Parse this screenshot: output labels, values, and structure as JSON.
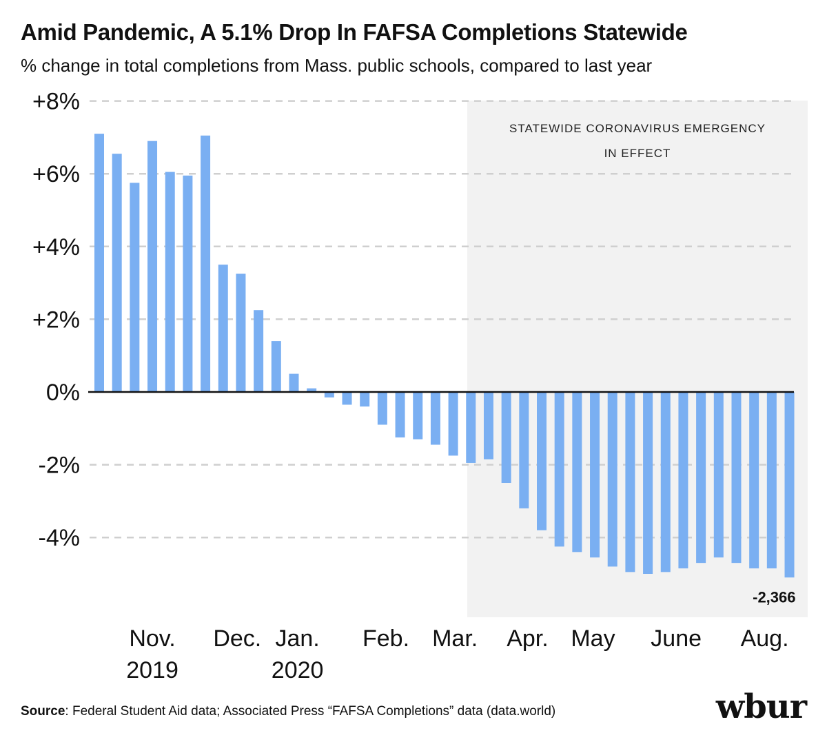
{
  "title": "Amid Pandemic, A 5.1% Drop In FAFSA Completions Statewide",
  "subtitle": "% change in total completions from Mass. public schools, compared to last year",
  "footer": {
    "source_label": "Source",
    "source_text": ": Federal Student Aid data; Associated Press “FAFSA Completions” data (data.world)"
  },
  "logo": "wbur",
  "chart_data": {
    "type": "bar",
    "ylabel": "",
    "xlabel": "",
    "ylim": [
      -6.2,
      8
    ],
    "yticks": [
      "+8%",
      "+6%",
      "+4%",
      "+2%",
      "0%",
      "-2%",
      "-4%"
    ],
    "ytick_values": [
      8,
      6,
      4,
      2,
      0,
      -2,
      -4
    ],
    "grid": true,
    "bar_color": "#7aaff2",
    "values": [
      7.1,
      6.55,
      5.75,
      6.9,
      6.05,
      5.95,
      7.05,
      3.5,
      3.25,
      2.25,
      1.4,
      0.5,
      0.1,
      -0.15,
      -0.35,
      -0.4,
      -0.9,
      -1.25,
      -1.3,
      -1.45,
      -1.75,
      -1.95,
      -1.85,
      -2.5,
      -3.2,
      -3.8,
      -4.25,
      -4.4,
      -4.55,
      -4.8,
      -4.95,
      -5.0,
      -4.95,
      -4.85,
      -4.7,
      -4.55,
      -4.7,
      -4.85,
      -4.85,
      -5.1
    ],
    "x_labels": [
      {
        "text": "Nov.",
        "sub": "2019",
        "bar": 3
      },
      {
        "text": "Dec.",
        "sub": "",
        "bar": 7.8
      },
      {
        "text": "Jan.",
        "sub": "2020",
        "bar": 11.2
      },
      {
        "text": "Feb.",
        "sub": "",
        "bar": 16.2
      },
      {
        "text": "Mar.",
        "sub": "",
        "bar": 20.1
      },
      {
        "text": "Apr.",
        "sub": "",
        "bar": 24.2
      },
      {
        "text": "May",
        "sub": "",
        "bar": 27.9
      },
      {
        "text": "June",
        "sub": "",
        "bar": 32.6
      },
      {
        "text": "Aug.",
        "sub": "",
        "bar": 37.6
      }
    ],
    "shaded_region": {
      "start_bar": 21.3,
      "label_lines": [
        "STATEWIDE CORONAVIRUS EMERGENCY",
        "IN EFFECT"
      ],
      "color": "#f2f2f2"
    },
    "annotation": {
      "text": "-2,366",
      "bar": 39
    }
  }
}
